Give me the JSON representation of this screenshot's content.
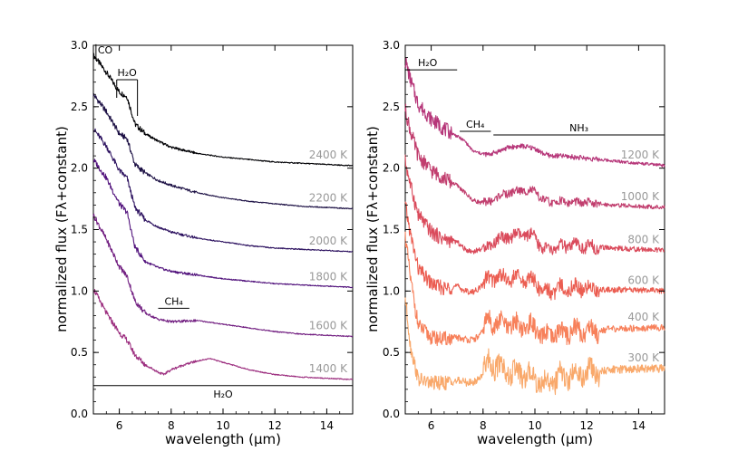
{
  "chart_data": [
    {
      "type": "line",
      "panel": "left",
      "xlabel": "wavelength (μm)",
      "ylabel": "normalized flux (Fλ+constant)",
      "xlim": [
        5,
        15
      ],
      "ylim": [
        0,
        3
      ],
      "xticks": [
        "6",
        "8",
        "10",
        "12",
        "14"
      ],
      "yticks": [
        "0.0",
        "0.5",
        "1.0",
        "1.5",
        "2.0",
        "2.5",
        "3.0"
      ],
      "series": [
        {
          "name": "2400 K",
          "color": "#000004",
          "x": [
            5,
            5.5,
            6,
            6.3,
            6.6,
            7,
            7.5,
            8,
            9,
            10,
            11,
            12,
            13,
            14,
            15
          ],
          "values": [
            2.92,
            2.78,
            2.62,
            2.58,
            2.36,
            2.28,
            2.22,
            2.17,
            2.12,
            2.09,
            2.07,
            2.05,
            2.04,
            2.03,
            2.02
          ]
        },
        {
          "name": "2200 K",
          "color": "#1c1044",
          "x": [
            5,
            5.5,
            6,
            6.3,
            6.6,
            7,
            7.5,
            8,
            9,
            10,
            11,
            12,
            13,
            14,
            15
          ],
          "values": [
            2.6,
            2.46,
            2.28,
            2.24,
            2.03,
            1.96,
            1.9,
            1.86,
            1.8,
            1.76,
            1.73,
            1.71,
            1.69,
            1.68,
            1.67
          ]
        },
        {
          "name": "2000 K",
          "color": "#2c115f",
          "x": [
            5,
            5.5,
            6,
            6.3,
            6.6,
            7,
            7.5,
            8,
            9,
            10,
            11,
            12,
            13,
            14,
            15
          ],
          "values": [
            2.32,
            2.18,
            1.98,
            1.92,
            1.68,
            1.58,
            1.52,
            1.48,
            1.43,
            1.4,
            1.37,
            1.35,
            1.34,
            1.33,
            1.32
          ]
        },
        {
          "name": "1800 K",
          "color": "#51127c",
          "x": [
            5,
            5.5,
            6,
            6.3,
            6.6,
            7,
            7.5,
            8,
            9,
            10,
            11,
            12,
            13,
            14,
            15
          ],
          "values": [
            2.07,
            1.92,
            1.71,
            1.64,
            1.36,
            1.24,
            1.19,
            1.16,
            1.13,
            1.1,
            1.08,
            1.06,
            1.05,
            1.04,
            1.03
          ]
        },
        {
          "name": "1600 K",
          "color": "#721f81",
          "x": [
            5,
            5.5,
            6,
            6.3,
            6.6,
            7,
            7.5,
            8,
            9,
            10,
            11,
            12,
            13,
            14,
            15
          ],
          "values": [
            1.62,
            1.42,
            1.2,
            1.12,
            0.92,
            0.82,
            0.77,
            0.75,
            0.76,
            0.73,
            0.7,
            0.67,
            0.65,
            0.64,
            0.63
          ]
        },
        {
          "name": "1400 K",
          "color": "#9c2e7f",
          "x": [
            5,
            5.5,
            6,
            6.3,
            6.6,
            7,
            7.5,
            7.7,
            8,
            8.5,
            9,
            9.5,
            10,
            11,
            12,
            13,
            14,
            15
          ],
          "values": [
            1.02,
            0.82,
            0.66,
            0.6,
            0.48,
            0.4,
            0.34,
            0.32,
            0.36,
            0.4,
            0.43,
            0.45,
            0.42,
            0.36,
            0.32,
            0.3,
            0.29,
            0.28
          ]
        }
      ],
      "series_labels": [
        "2400 K",
        "2200 K",
        "2000 K",
        "1800 K",
        "1600 K",
        "1400 K"
      ],
      "annotations": [
        {
          "text": "CO",
          "x": 5.1,
          "x_end": 5.1,
          "y": 2.92
        },
        {
          "text": "H₂O",
          "x": 5.9,
          "x_end": 6.7,
          "y": 2.72
        },
        {
          "text": "CH₄",
          "x": 7.5,
          "x_end": 8.7,
          "y": 0.86
        },
        {
          "text": "H₂O",
          "x": 5.0,
          "x_end": 15.0,
          "y": 0.23
        }
      ]
    },
    {
      "type": "line",
      "panel": "right",
      "xlabel": "wavelength (μm)",
      "ylabel": "normalized flux (Fλ+constant)",
      "xlim": [
        5,
        15
      ],
      "ylim": [
        0,
        3
      ],
      "xticks": [
        "6",
        "8",
        "10",
        "12",
        "14"
      ],
      "yticks": [
        "0.0",
        "0.5",
        "1.0",
        "1.5",
        "2.0",
        "2.5",
        "3.0"
      ],
      "series": [
        {
          "name": "1200 K",
          "color": "#b63679",
          "x": [
            5,
            5.2,
            5.5,
            6,
            6.5,
            7,
            7.3,
            7.6,
            7.9,
            8.2,
            8.5,
            9,
            9.5,
            10,
            10.3,
            10.6,
            11,
            11.5,
            12,
            13,
            14,
            15
          ],
          "values": [
            2.88,
            2.72,
            2.52,
            2.4,
            2.32,
            2.26,
            2.22,
            2.14,
            2.12,
            2.11,
            2.13,
            2.17,
            2.18,
            2.16,
            2.12,
            2.1,
            2.1,
            2.09,
            2.08,
            2.06,
            2.04,
            2.02
          ]
        },
        {
          "name": "1000 K",
          "color": "#c13e6e",
          "x": [
            5,
            5.2,
            5.5,
            6,
            6.5,
            7,
            7.3,
            7.6,
            7.9,
            8.2,
            8.5,
            9,
            9.5,
            10,
            10.3,
            10.6,
            11,
            11.5,
            12,
            13,
            14,
            15
          ],
          "values": [
            2.48,
            2.3,
            2.1,
            1.98,
            1.92,
            1.86,
            1.8,
            1.74,
            1.72,
            1.72,
            1.76,
            1.8,
            1.82,
            1.81,
            1.74,
            1.72,
            1.73,
            1.72,
            1.72,
            1.7,
            1.69,
            1.68
          ]
        },
        {
          "name": "800 K",
          "color": "#da4a5b",
          "x": [
            5,
            5.2,
            5.5,
            6,
            6.5,
            7,
            7.3,
            7.6,
            7.9,
            8.2,
            8.5,
            9,
            9.5,
            10,
            10.3,
            10.6,
            11,
            11.5,
            12,
            13,
            14,
            15
          ],
          "values": [
            2.06,
            1.86,
            1.62,
            1.48,
            1.42,
            1.4,
            1.34,
            1.32,
            1.34,
            1.36,
            1.42,
            1.44,
            1.46,
            1.44,
            1.34,
            1.34,
            1.36,
            1.37,
            1.36,
            1.35,
            1.34,
            1.33
          ]
        },
        {
          "name": "600 K",
          "color": "#eb5d51",
          "x": [
            5,
            5.2,
            5.5,
            6,
            6.5,
            7,
            7.3,
            7.6,
            7.9,
            8.2,
            8.5,
            9,
            9.5,
            10,
            10.3,
            10.6,
            11,
            11.5,
            12,
            13,
            14,
            15
          ],
          "values": [
            1.7,
            1.46,
            1.18,
            1.06,
            1.02,
            1.04,
            1.0,
            0.99,
            1.03,
            1.1,
            1.12,
            1.1,
            1.1,
            1.08,
            1.0,
            1.0,
            1.02,
            1.03,
            1.02,
            1.01,
            1.01,
            1.0
          ]
        },
        {
          "name": "400 K",
          "color": "#f7805a",
          "x": [
            5,
            5.2,
            5.5,
            6,
            6.5,
            7,
            7.3,
            7.6,
            7.9,
            8.2,
            8.5,
            9,
            9.5,
            10,
            10.3,
            10.6,
            11,
            11.5,
            12,
            13,
            14,
            15
          ],
          "values": [
            1.45,
            1.1,
            0.72,
            0.62,
            0.61,
            0.62,
            0.61,
            0.6,
            0.64,
            0.76,
            0.74,
            0.72,
            0.72,
            0.7,
            0.62,
            0.64,
            0.66,
            0.68,
            0.68,
            0.69,
            0.7,
            0.7
          ]
        },
        {
          "name": "300 K",
          "color": "#f9a86a",
          "x": [
            5,
            5.2,
            5.5,
            6,
            6.5,
            7,
            7.3,
            7.6,
            7.9,
            8.2,
            8.5,
            9,
            9.5,
            10,
            10.3,
            10.6,
            11,
            11.5,
            12,
            13,
            14,
            15
          ],
          "values": [
            0.95,
            0.55,
            0.28,
            0.25,
            0.25,
            0.27,
            0.26,
            0.25,
            0.3,
            0.42,
            0.4,
            0.34,
            0.32,
            0.3,
            0.25,
            0.26,
            0.3,
            0.32,
            0.33,
            0.36,
            0.37,
            0.37
          ]
        }
      ],
      "series_labels": [
        "1200 K",
        "1000 K",
        "800 K",
        "600 K",
        "400 K",
        "300 K"
      ],
      "annotations": [
        {
          "text": "H₂O",
          "x": 5.0,
          "x_end": 7.0,
          "y": 2.8
        },
        {
          "text": "CH₄",
          "x": 7.1,
          "x_end": 8.3,
          "y": 2.3
        },
        {
          "text": "NH₃",
          "x": 8.4,
          "x_end": 15.0,
          "y": 2.27
        }
      ]
    }
  ]
}
